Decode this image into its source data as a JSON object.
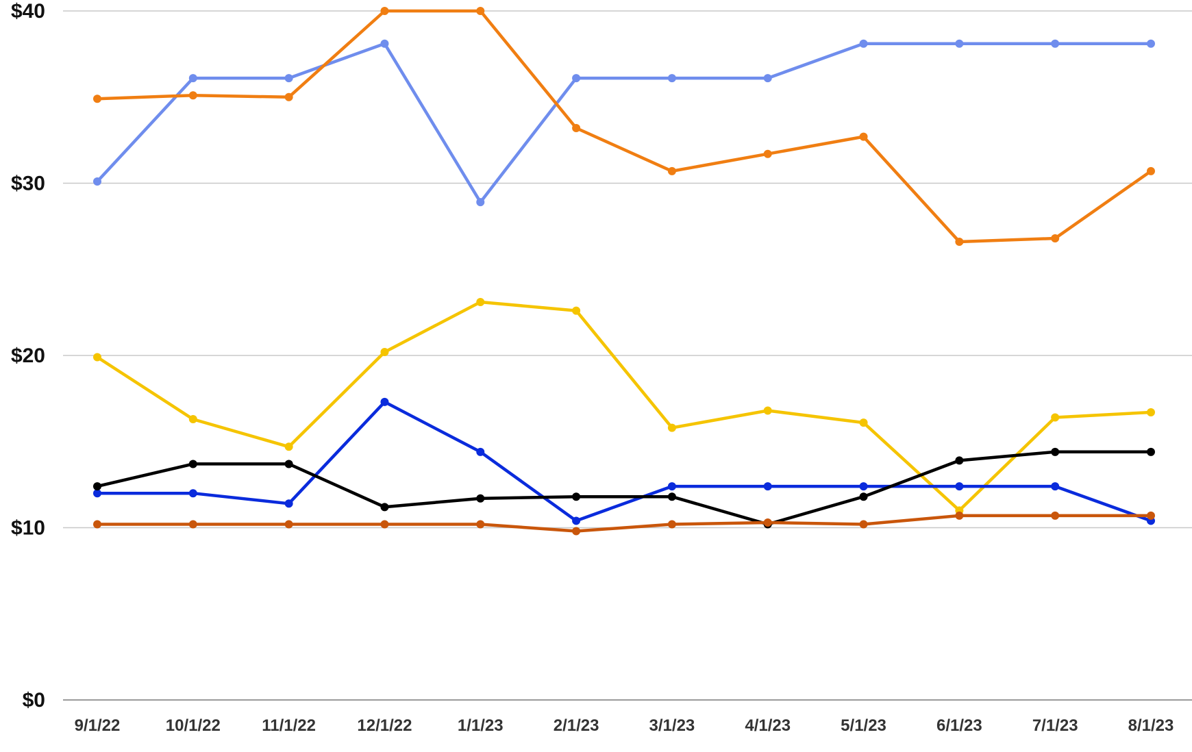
{
  "chart_data": {
    "type": "line",
    "title": "",
    "xlabel": "",
    "ylabel": "",
    "categories": [
      "9/1/22",
      "10/1/22",
      "11/1/22",
      "12/1/22",
      "1/1/23",
      "2/1/23",
      "3/1/23",
      "4/1/23",
      "5/1/23",
      "6/1/23",
      "7/1/23",
      "8/1/23"
    ],
    "ylim": [
      0,
      40
    ],
    "yticks": [
      0,
      10,
      20,
      30,
      40
    ],
    "ytick_labels": [
      "$0",
      "$10",
      "$20",
      "$30",
      "$40"
    ],
    "grid": true,
    "legend": "none",
    "series": [
      {
        "color": "#6f8ded",
        "values": [
          30.1,
          36.1,
          36.1,
          38.1,
          28.9,
          36.1,
          36.1,
          36.1,
          38.1,
          38.1,
          38.1,
          38.1
        ]
      },
      {
        "color": "#f07e12",
        "values": [
          34.9,
          35.1,
          35.0,
          40.0,
          40.0,
          33.2,
          30.7,
          31.7,
          32.7,
          26.6,
          26.8,
          30.7
        ]
      },
      {
        "color": "#f5c400",
        "values": [
          19.9,
          16.3,
          14.7,
          20.2,
          23.1,
          22.6,
          15.8,
          16.8,
          16.1,
          11.0,
          16.4,
          16.7
        ]
      },
      {
        "color": "#0a2bdc",
        "values": [
          12.0,
          12.0,
          11.4,
          17.3,
          14.4,
          10.4,
          12.4,
          12.4,
          12.4,
          12.4,
          12.4,
          10.4
        ]
      },
      {
        "color": "#000000",
        "values": [
          12.4,
          13.7,
          13.7,
          11.2,
          11.7,
          11.8,
          11.8,
          10.2,
          11.8,
          13.9,
          14.4,
          14.4
        ]
      },
      {
        "color": "#c9560b",
        "values": [
          10.2,
          10.2,
          10.2,
          10.2,
          10.2,
          9.8,
          10.2,
          10.3,
          10.2,
          10.7,
          10.7,
          10.7
        ]
      }
    ]
  }
}
